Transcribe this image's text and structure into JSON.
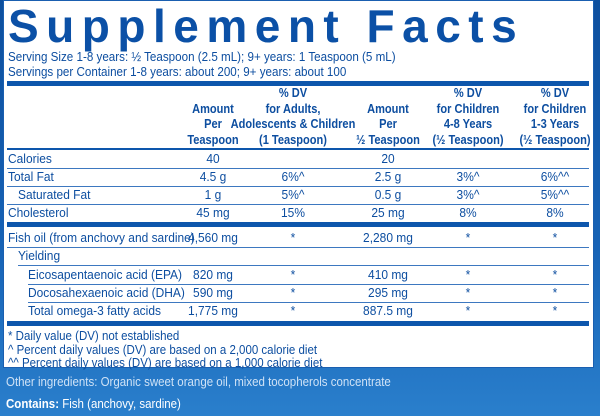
{
  "title": "Supplement Facts",
  "serving_size": "Serving Size 1-8 years: ½ Teaspoon (2.5 mL); 9+ years: 1 Teaspoon (5 mL)",
  "servings_per_container": "Servings per Container 1-8 years: about 200; 9+ years: about 100",
  "columns": [
    [
      "Amount",
      "Per",
      "Teaspoon"
    ],
    [
      "% DV",
      "for Adults,",
      "Adolescents & Children",
      "(1 Teaspoon)"
    ],
    [
      "Amount",
      "Per",
      "½ Teaspoon"
    ],
    [
      "% DV",
      "for Children",
      "4-8 Years",
      "(½ Teaspoon)"
    ],
    [
      "% DV",
      "for Children",
      "1-3 Years",
      "(½ Teaspoon)"
    ]
  ],
  "rows": [
    {
      "label": "Calories",
      "values": [
        "40",
        "",
        "20",
        "",
        ""
      ]
    },
    {
      "label": "Total Fat",
      "values": [
        "4.5 g",
        "6%^",
        "2.5 g",
        "3%^",
        "6%^^"
      ]
    },
    {
      "label": "Saturated Fat",
      "values": [
        "1 g",
        "5%^",
        "0.5 g",
        "3%^",
        "5%^^"
      ]
    },
    {
      "label": "Cholesterol",
      "values": [
        "45 mg",
        "15%",
        "25 mg",
        "8%",
        "8%"
      ]
    },
    {
      "label": "Fish oil (from anchovy and sardine)",
      "values": [
        "4,560 mg",
        "*",
        "2,280 mg",
        "*",
        "*"
      ]
    },
    {
      "label": "Yielding",
      "values": [
        "",
        "",
        "",
        "",
        ""
      ]
    },
    {
      "label": "Eicosapentaenoic acid (EPA)",
      "values": [
        "820 mg",
        "*",
        "410 mg",
        "*",
        "*"
      ]
    },
    {
      "label": "Docosahexaenoic acid (DHA)",
      "values": [
        "590 mg",
        "*",
        "295 mg",
        "*",
        "*"
      ]
    },
    {
      "label": "Total omega-3 fatty acids",
      "values": [
        "1,775 mg",
        "*",
        "887.5 mg",
        "*",
        "*"
      ]
    }
  ],
  "footnotes": [
    "* Daily value (DV) not established",
    "^ Percent daily values (DV) are based on a 2,000 calorie diet",
    "^^ Percent daily values (DV) are based on a 1,000 calorie diet"
  ],
  "other_ingredients": "Other ingredients: Organic sweet orange oil, mixed tocopherols concentrate",
  "contains_label": "Contains:",
  "contains_value": " Fish (anchovy, sardine)",
  "colors": {
    "text": "#0d4ea0",
    "bar": "#0d56ac",
    "background": "#1763b6"
  }
}
